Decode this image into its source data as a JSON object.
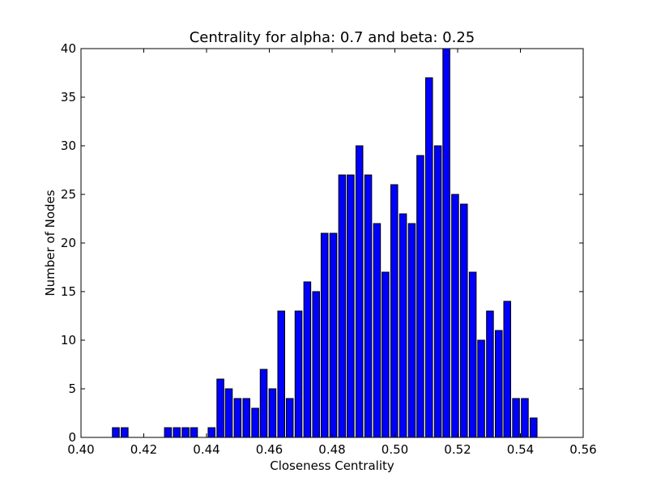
{
  "chart_data": {
    "type": "bar",
    "title": "Centrality for alpha: 0.7 and beta: 0.25",
    "xlabel": "Closeness Centrality",
    "ylabel": "Number of Nodes",
    "xlim": [
      0.4,
      0.56
    ],
    "ylim": [
      0,
      40
    ],
    "x_ticks": [
      "0.40",
      "0.42",
      "0.44",
      "0.46",
      "0.48",
      "0.50",
      "0.52",
      "0.54",
      "0.56"
    ],
    "y_ticks": [
      "0",
      "5",
      "10",
      "15",
      "20",
      "25",
      "30",
      "35",
      "40"
    ],
    "bar_width": 0.0022,
    "x": [
      0.41,
      0.4128,
      0.4155,
      0.4183,
      0.4211,
      0.4239,
      0.4266,
      0.4294,
      0.4322,
      0.4349,
      0.4377,
      0.4405,
      0.4433,
      0.446,
      0.4488,
      0.4516,
      0.4544,
      0.4571,
      0.4599,
      0.4627,
      0.4654,
      0.4682,
      0.471,
      0.4738,
      0.4765,
      0.4793,
      0.4821,
      0.4848,
      0.4876,
      0.4904,
      0.4932,
      0.4959,
      0.4987,
      0.5015,
      0.5043,
      0.507,
      0.5098,
      0.5126,
      0.5153,
      0.5181,
      0.5209,
      0.5237,
      0.5264,
      0.5292,
      0.532,
      0.5347,
      0.5375,
      0.5403,
      0.5431,
      0.5458
    ],
    "values": [
      1,
      1,
      0,
      0,
      0,
      0,
      1,
      1,
      1,
      1,
      0,
      1,
      6,
      5,
      4,
      4,
      3,
      7,
      5,
      13,
      4,
      13,
      16,
      15,
      21,
      21,
      27,
      27,
      30,
      27,
      22,
      17,
      26,
      23,
      22,
      29,
      37,
      30,
      40,
      25,
      24,
      17,
      10,
      13,
      11,
      14,
      4,
      4,
      2,
      0
    ],
    "bar_color": "#0000ff",
    "edge_color": "#000000",
    "grid": false,
    "legend": "none"
  }
}
